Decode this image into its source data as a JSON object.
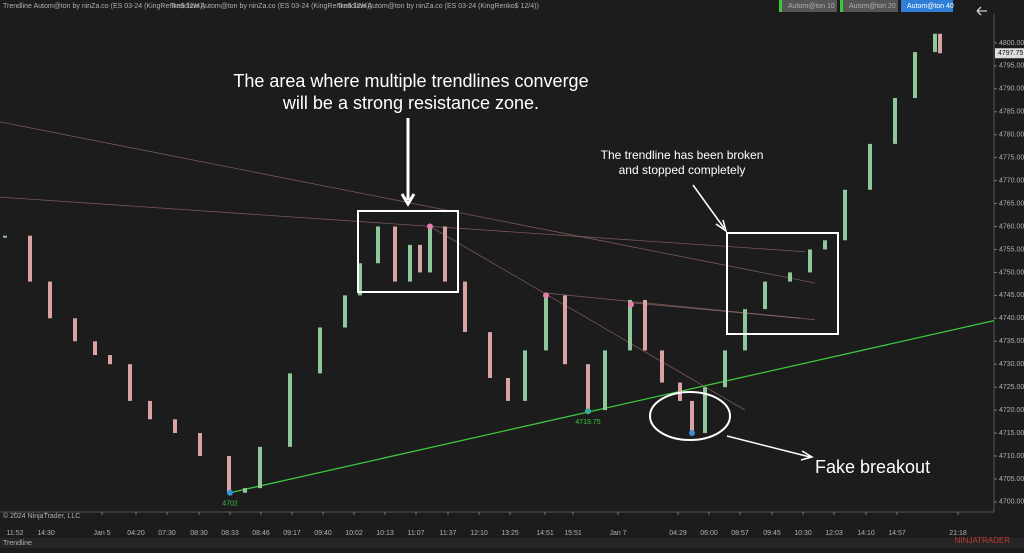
{
  "chart_data": {
    "type": "renko",
    "header": [
      "Trendline Autom@ton by ninZa.co (ES 03-24 (KingRenko$ 12/4))",
      "Trendline Autom@ton by ninZa.co (ES 03-24 (KingRenko$ 12/4))",
      "Trendline Autom@ton by ninZa.co (ES 03-24 (KingRenko$ 12/4))"
    ],
    "buttons": [
      "Autom@ton  10",
      "Autom@ton  20",
      "Autom@ton  40"
    ],
    "annotations": [
      "The area where multiple trendlines converge",
      "will be a strong resistance zone.",
      "The trendline has been broken",
      "and stopped completely",
      "Fake breakout"
    ],
    "copyright": "© 2024 NinjaTrader, LLC",
    "tab": "Trendline",
    "logo": "NINJATRADER",
    "xlim": [
      0,
      99.4
    ],
    "ylim": [
      4697.8,
      4806.3
    ],
    "xticks": [
      {
        "value": 1.5,
        "label": "11:52"
      },
      {
        "value": 4.6,
        "label": "14:30"
      },
      {
        "value": 10.2,
        "label": "Jan 5"
      },
      {
        "value": 13.6,
        "label": "04:20"
      },
      {
        "value": 16.7,
        "label": "07:30"
      },
      {
        "value": 19.9,
        "label": "08:30"
      },
      {
        "value": 23,
        "label": "08:33"
      },
      {
        "value": 26.1,
        "label": "08:46"
      },
      {
        "value": 29.2,
        "label": "09:17"
      },
      {
        "value": 32.3,
        "label": "09:40"
      },
      {
        "value": 35.4,
        "label": "10:02"
      },
      {
        "value": 38.5,
        "label": "10:13"
      },
      {
        "value": 41.6,
        "label": "11:07"
      },
      {
        "value": 44.8,
        "label": "11:37"
      },
      {
        "value": 47.9,
        "label": "12:10"
      },
      {
        "value": 51,
        "label": "13:25"
      },
      {
        "value": 54.5,
        "label": "14:51"
      },
      {
        "value": 57.3,
        "label": "15:51"
      },
      {
        "value": 61.8,
        "label": "Jan 7"
      },
      {
        "value": 67.8,
        "label": "04:29"
      },
      {
        "value": 70.9,
        "label": "06:00"
      },
      {
        "value": 74,
        "label": "08:57"
      },
      {
        "value": 77.2,
        "label": "09:45"
      },
      {
        "value": 80.3,
        "label": "10:30"
      },
      {
        "value": 83.4,
        "label": "12:03"
      },
      {
        "value": 86.6,
        "label": "14:10"
      },
      {
        "value": 89.7,
        "label": "14:57"
      },
      {
        "value": 95.8,
        "label": "21:18"
      }
    ],
    "yticks": [
      {
        "value": 4700,
        "label": "4700.00"
      },
      {
        "value": 4705,
        "label": "4705.00"
      },
      {
        "value": 4710,
        "label": "4710.00"
      },
      {
        "value": 4715,
        "label": "4715.00"
      },
      {
        "value": 4720,
        "label": "4720.00"
      },
      {
        "value": 4725,
        "label": "4725.00"
      },
      {
        "value": 4730,
        "label": "4730.00"
      },
      {
        "value": 4735,
        "label": "4735.00"
      },
      {
        "value": 4740,
        "label": "4740.00"
      },
      {
        "value": 4745,
        "label": "4745.00"
      },
      {
        "value": 4750,
        "label": "4750.00"
      },
      {
        "value": 4755,
        "label": "4755.00"
      },
      {
        "value": 4760,
        "label": "4760.00"
      },
      {
        "value": 4765,
        "label": "4765.00"
      },
      {
        "value": 4770,
        "label": "4770.00"
      },
      {
        "value": 4775,
        "label": "4775.00"
      },
      {
        "value": 4780,
        "label": "4780.00"
      },
      {
        "value": 4785,
        "label": "4785.00"
      },
      {
        "value": 4790,
        "label": "4790.00"
      },
      {
        "value": 4795,
        "label": "4795.00"
      },
      {
        "value": 4800,
        "label": "4800.00"
      }
    ],
    "series": [
      {
        "up_color": "#8fc79a",
        "down_color": "#d9a3a3",
        "x": [
          0.5,
          3,
          5,
          7.5,
          9.5,
          11,
          13,
          15,
          17.5,
          20,
          22.9,
          24.5,
          26,
          29,
          32,
          34.5,
          36,
          37.8,
          39.5,
          41,
          42,
          43,
          44.5,
          46.5,
          49,
          50.8,
          52.5,
          54.6,
          56.5,
          58.8,
          60.5,
          63,
          64.5,
          66.2,
          68,
          69.2,
          70.5,
          72.5,
          74.5,
          76.5,
          79,
          81,
          82.5,
          84.5,
          87,
          89.5,
          91.5,
          93.5,
          94
        ],
        "values": [
          4758,
          4748,
          4740,
          4735,
          4732,
          4730,
          4722,
          4718,
          4715,
          4710,
          4702,
          4703,
          4712,
          4728,
          4738,
          4745,
          4752,
          4760,
          4748,
          4756,
          4750,
          4760,
          4748,
          4737,
          4727,
          4722,
          4733,
          4745,
          4730,
          4720,
          4733,
          4744,
          4733,
          4726,
          4722,
          4715,
          4725,
          4733,
          4742,
          4748,
          4750,
          4755,
          4757,
          4768,
          4778,
          4788,
          4798,
          4802,
          4797.75
        ]
      }
    ],
    "trendlines": [
      {
        "color": "#3cc83c",
        "x": [
          23,
          99.4
        ],
        "values": [
          4702,
          4739.5
        ]
      },
      {
        "color": "#a07070",
        "x": [
          0,
          81.5
        ],
        "values": [
          4782.8,
          4747.7
        ]
      },
      {
        "color": "#a07070",
        "x": [
          0,
          80.5
        ],
        "values": [
          4766.4,
          4754.5
        ]
      },
      {
        "color": "#a07070",
        "x": [
          43,
          74.5
        ],
        "values": [
          4760,
          4720
        ]
      },
      {
        "color": "#a07070",
        "x": [
          54.6,
          81.5
        ],
        "values": [
          4745.5,
          4739.7
        ]
      },
      {
        "color": "#a07070",
        "x": [
          63.1,
          80
        ],
        "values": [
          4743.4,
          4740
        ]
      }
    ],
    "pivots": [
      {
        "x": 23,
        "value": 4702,
        "color": "#3a8fd8",
        "label": "4702"
      },
      {
        "x": 58.8,
        "value": 4719.75,
        "color": "#3aa8a0",
        "label": "4719.75"
      },
      {
        "x": 69.2,
        "value": 4715,
        "color": "#3a8fd8"
      },
      {
        "x": 43,
        "value": 4760,
        "color": "#e57fa8"
      },
      {
        "x": 54.6,
        "value": 4745,
        "color": "#e57fa8"
      },
      {
        "x": 63.1,
        "value": 4743,
        "color": "#e57fa8"
      }
    ]
  }
}
